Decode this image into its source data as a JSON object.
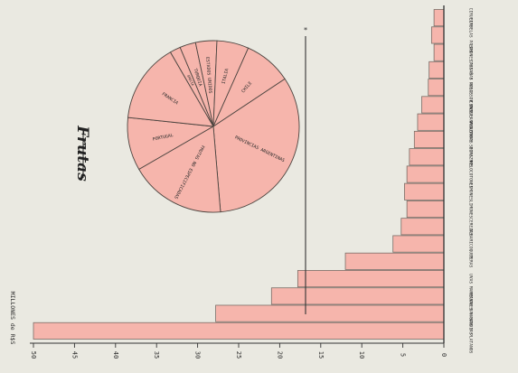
{
  "chart_data": [
    {
      "type": "bar",
      "orientation": "horizontal",
      "title": "Frutas",
      "ylabel": "MILLONES de R$S",
      "axis_ticks": [
        0,
        5,
        10,
        15,
        20,
        25,
        30,
        35,
        40,
        45,
        50
      ],
      "ylim": [
        0,
        50
      ],
      "categories": [
        "CIRUELAS",
        "CIRUELAS PASAS",
        "LIMONES",
        "CASTAÑAS",
        "PASAS Y PASAS DE UVA",
        "NUECES Y AVELLANAS",
        "CEREZAS Y GUINDAS",
        "MANZANAS SECAS",
        "DURAZNOS",
        "MELOCOTONES",
        "LIMONES",
        "LIMONES",
        "CEREZAS",
        "ALBARICOQUES",
        "PERAS",
        "UVAS",
        "MANZANAS",
        "MELONES Y SANDIAS",
        "BANANAS Y PLATANOS"
      ],
      "values": [
        1.2,
        1.5,
        1.2,
        1.8,
        1.9,
        2.7,
        3.2,
        3.6,
        4.2,
        4.5,
        4.8,
        4.5,
        5.2,
        6.2,
        12.0,
        17.8,
        21.0,
        27.8,
        50.0
      ],
      "bar_color": "#f6b5ac",
      "grid": false
    },
    {
      "type": "pie",
      "labels": [
        "PORTUGAL",
        "FRANCIA",
        "GRECIA",
        "TURQUIA",
        "ESTADOS UNIDOS",
        "ITALIA",
        "CHILE",
        "PROVINCIAS ARGENTINAS",
        "FRUTAS NO ESPECIFICADAS"
      ],
      "values": [
        10,
        15,
        2,
        3,
        4,
        6,
        9,
        33,
        18
      ],
      "slice_color": "#f6b5ac"
    }
  ]
}
